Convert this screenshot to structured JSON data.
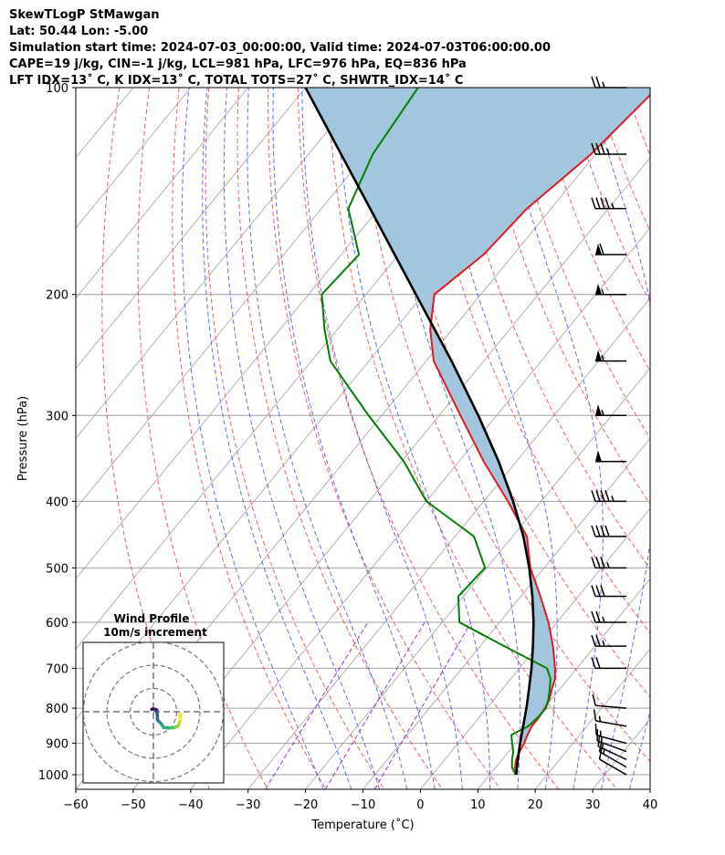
{
  "header": {
    "line1": "SkewTLogP StMawgan",
    "line2": "Lat: 50.44   Lon: -5.00",
    "line3": "Simulation start time: 2024-07-03_00:00:00, Valid time: 2024-07-03T06:00:00.00",
    "line4": "CAPE=19 j/kg, CIN=-1 j/kg, LCL=981 hPa, LFC=976 hPa, EQ=836 hPa",
    "line5": "LFT IDX=13˚ C, K IDX=13˚ C, TOTAL TOTS=27˚ C, SHWTR_IDX=14˚ C"
  },
  "colors": {
    "temperature": "#e31a1c",
    "dewpoint": "#008000",
    "parcel": "#000000",
    "cape_fill": "#a3c6df",
    "dry_adiabat": "#f06060",
    "moist_adiabat": "#3050f0",
    "mixing_ratio": "#9933cc",
    "isotherm": "#a0a0a0"
  },
  "chart_data": {
    "type": "line",
    "title": "SkewTLogP StMawgan",
    "xlabel": "Temperature (˚C)",
    "ylabel": "Pressure (hPa)",
    "xlim": [
      -60,
      40
    ],
    "ylim": [
      1050,
      100
    ],
    "skew": 1.0,
    "x_ticks": [
      -60,
      -50,
      -40,
      -30,
      -20,
      -10,
      0,
      10,
      20,
      30,
      40
    ],
    "x_tick_labels": [
      "−60",
      "−50",
      "−40",
      "−30",
      "−20",
      "−10",
      "0",
      "10",
      "20",
      "30",
      "40"
    ],
    "y_ticks": [
      1000,
      900,
      800,
      700,
      600,
      500,
      400,
      300,
      200,
      100
    ],
    "y_tick_labels": [
      "1000",
      "900",
      "800",
      "700",
      "600",
      "500",
      "400",
      "300",
      "200",
      "100"
    ],
    "series": [
      {
        "name": "Temperature",
        "pressure": [
          1000,
          975,
          950,
          925,
          900,
          875,
          850,
          825,
          800,
          775,
          750,
          725,
          700,
          650,
          600,
          550,
          500,
          450,
          400,
          350,
          300,
          250,
          225,
          200,
          175,
          150,
          125,
          100
        ],
        "values": [
          14.6,
          13.3,
          12.4,
          11.9,
          11.5,
          10.9,
          10.4,
          10.4,
          10.1,
          9.6,
          8.6,
          7.7,
          6.2,
          2.7,
          -1.5,
          -6.6,
          -12.4,
          -17.5,
          -25.8,
          -35.7,
          -46.3,
          -58.7,
          -63.8,
          -68.1,
          -65.2,
          -64.2,
          -60.8,
          -58.7
        ]
      },
      {
        "name": "Dewpoint",
        "pressure": [
          1000,
          975,
          950,
          925,
          900,
          875,
          850,
          825,
          800,
          775,
          750,
          725,
          700,
          650,
          600,
          550,
          500,
          450,
          400,
          350,
          300,
          250,
          225,
          200,
          175,
          150,
          125,
          100
        ],
        "values": [
          14.5,
          12.8,
          11.7,
          10.8,
          9.4,
          8.1,
          9.8,
          10.2,
          10.3,
          9.4,
          8.2,
          6.9,
          4.8,
          -5.8,
          -17.0,
          -20.9,
          -20.3,
          -26.7,
          -40.0,
          -49.6,
          -62.3,
          -76.7,
          -82.2,
          -87.7,
          -86.9,
          -95.3,
          -98.8,
          -100.4
        ]
      },
      {
        "name": "Parcel",
        "pressure": [
          1000,
          950,
          900,
          850,
          800,
          750,
          700,
          650,
          600,
          550,
          500,
          450,
          400,
          350,
          300,
          250,
          200,
          150,
          100
        ],
        "values": [
          14.6,
          12.7,
          10.8,
          8.9,
          6.9,
          4.6,
          2.1,
          -0.8,
          -4.1,
          -8.0,
          -12.6,
          -18.1,
          -24.9,
          -33.1,
          -43.2,
          -55.6,
          -71.3,
          -91.5,
          -120.0
        ]
      }
    ],
    "wind_barbs": {
      "pressure": [
        1000,
        975,
        950,
        925,
        900,
        850,
        800,
        700,
        650,
        600,
        550,
        500,
        450,
        400,
        350,
        300,
        250,
        200,
        175,
        150,
        125,
        100
      ],
      "speed_kt": [
        12,
        13,
        14,
        16,
        17,
        14,
        12,
        18,
        23,
        27,
        32,
        36,
        40,
        43,
        52,
        55,
        56,
        57,
        58,
        45,
        35,
        25
      ],
      "direction_deg": [
        300,
        300,
        295,
        290,
        285,
        280,
        275,
        270,
        270,
        270,
        270,
        270,
        270,
        270,
        270,
        270,
        270,
        270,
        270,
        270,
        270,
        270
      ]
    },
    "hodograph": {
      "title": "Wind Profile",
      "subtitle": "10m/s increment",
      "ring_increment_ms": 10,
      "u": [
        11.5,
        11.5,
        11.3,
        10.5,
        8.7,
        6.7,
        4.4,
        3.4,
        2.3,
        1.7,
        1.7,
        1.5,
        1.5,
        1.0,
        -0.3,
        -0.7
      ],
      "v": [
        -1.0,
        -2.5,
        -4.5,
        -6.2,
        -6.8,
        -7.0,
        -6.7,
        -5.3,
        -4.1,
        -3.4,
        -1.5,
        0.0,
        0.8,
        1.0,
        1.2,
        1.0
      ]
    }
  }
}
